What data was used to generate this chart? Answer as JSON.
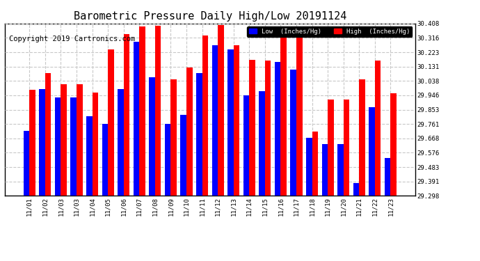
{
  "title": "Barometric Pressure Daily High/Low 20191124",
  "copyright": "Copyright 2019 Cartronics.com",
  "legend_low": "Low  (Inches/Hg)",
  "legend_high": "High  (Inches/Hg)",
  "dates": [
    "11/01",
    "11/02",
    "11/03",
    "11/03",
    "11/04",
    "11/05",
    "11/06",
    "11/07",
    "11/08",
    "11/09",
    "11/10",
    "11/11",
    "11/12",
    "11/13",
    "11/14",
    "11/15",
    "11/16",
    "11/17",
    "11/18",
    "11/19",
    "11/20",
    "11/21",
    "11/22",
    "11/23"
  ],
  "low_values": [
    29.715,
    29.985,
    29.93,
    29.93,
    29.81,
    29.76,
    29.985,
    30.29,
    30.06,
    29.76,
    29.82,
    30.09,
    30.27,
    30.24,
    29.945,
    29.97,
    30.16,
    30.11,
    29.67,
    29.63,
    29.63,
    29.38,
    29.87,
    29.54
  ],
  "high_values": [
    29.98,
    30.09,
    30.015,
    30.015,
    29.965,
    30.24,
    30.34,
    30.39,
    30.395,
    30.05,
    30.125,
    30.33,
    30.4,
    30.27,
    30.175,
    30.17,
    30.34,
    30.335,
    29.71,
    29.92,
    29.92,
    30.048,
    30.17,
    29.96
  ],
  "bar_color_low": "#0000ff",
  "bar_color_high": "#ff0000",
  "ylim_min": 29.298,
  "ylim_max": 30.408,
  "yticks": [
    29.298,
    29.391,
    29.483,
    29.576,
    29.668,
    29.761,
    29.853,
    29.946,
    30.038,
    30.131,
    30.223,
    30.316,
    30.408
  ],
  "bg_color": "#ffffff",
  "plot_bg_color": "#ffffff",
  "grid_color": "#c8c8c8",
  "title_fontsize": 11,
  "copyright_fontsize": 7.5
}
